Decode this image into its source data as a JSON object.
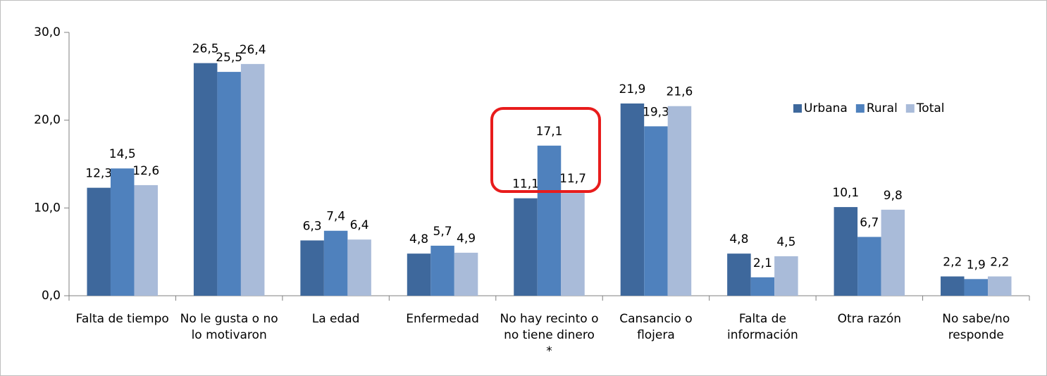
{
  "chart_data": {
    "type": "bar",
    "categories": [
      "Falta de tiempo",
      "No le gusta o no lo motivaron",
      "La edad",
      "Enfermedad",
      "No hay recinto o no tiene dinero *",
      "Cansancio o flojera",
      "Falta de información",
      "Otra razón",
      "No sabe/no responde"
    ],
    "series": [
      {
        "name": "Urbana",
        "color": "#3e689c",
        "values": [
          12.3,
          26.5,
          6.3,
          4.8,
          11.1,
          21.9,
          4.8,
          10.1,
          2.2
        ],
        "value_labels": [
          "12,3",
          "26,5",
          "6,3",
          "4,8",
          "11,1",
          "21,9",
          "4,8",
          "10,1",
          "2,2"
        ]
      },
      {
        "name": "Rural",
        "color": "#4f81bd",
        "values": [
          14.5,
          25.5,
          7.4,
          5.7,
          17.1,
          19.3,
          2.1,
          6.7,
          1.9
        ],
        "value_labels": [
          "14,5",
          "25,5",
          "7,4",
          "5,7",
          "17,1",
          "19,3",
          "2,1",
          "6,7",
          "1,9"
        ]
      },
      {
        "name": "Total",
        "color": "#a9bbd9",
        "values": [
          12.6,
          26.4,
          6.4,
          4.9,
          11.7,
          21.6,
          4.5,
          9.8,
          2.2
        ],
        "value_labels": [
          "12,6",
          "26,4",
          "6,4",
          "4,9",
          "11,7",
          "21,6",
          "4,5",
          "9,8",
          "2,2"
        ]
      }
    ],
    "ylim": [
      0,
      30
    ],
    "yticks": [
      {
        "value": 0,
        "label": "0,0"
      },
      {
        "value": 10,
        "label": "10,0"
      },
      {
        "value": 20,
        "label": "20,0"
      },
      {
        "value": 30,
        "label": "30,0"
      }
    ],
    "legend": "upper right"
  }
}
